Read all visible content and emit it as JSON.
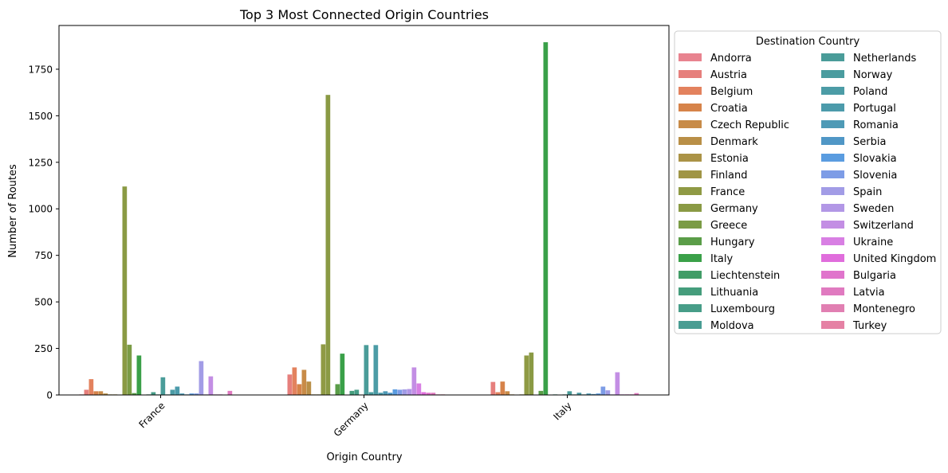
{
  "chart_data": {
    "type": "bar",
    "title": "Top 3 Most Connected Origin Countries",
    "xlabel": "Origin Country",
    "ylabel": "Number of Routes",
    "ylim": [
      0,
      2000
    ],
    "yticks": [
      0,
      250,
      500,
      750,
      1000,
      1250,
      1500,
      1750
    ],
    "categories": [
      "France",
      "Germany",
      "Italy"
    ],
    "legend": {
      "title": "Destination Country",
      "placement": "upper right, outside the axes",
      "columns": 2
    },
    "grid": false,
    "series": [
      {
        "name": "Andorra",
        "color": "#e8838f",
        "values": [
          3,
          0,
          0
        ]
      },
      {
        "name": "Austria",
        "color": "#e67f7c",
        "values": [
          28,
          110,
          70
        ]
      },
      {
        "name": "Belgium",
        "color": "#e3825e",
        "values": [
          85,
          148,
          15
        ]
      },
      {
        "name": "Croatia",
        "color": "#d6834a",
        "values": [
          20,
          58,
          72
        ]
      },
      {
        "name": "Czech Republic",
        "color": "#c88b48",
        "values": [
          20,
          135,
          20
        ]
      },
      {
        "name": "Denmark",
        "color": "#b98f47",
        "values": [
          8,
          72,
          3
        ]
      },
      {
        "name": "Estonia",
        "color": "#ab9346",
        "values": [
          3,
          3,
          0
        ]
      },
      {
        "name": "Finland",
        "color": "#a09545",
        "values": [
          3,
          3,
          3
        ]
      },
      {
        "name": "France",
        "color": "#8f9a44",
        "values": [
          0,
          272,
          212
        ]
      },
      {
        "name": "Germany",
        "color": "#8a9a44",
        "values": [
          1120,
          1612,
          228
        ]
      },
      {
        "name": "Greece",
        "color": "#7b9c45",
        "values": [
          270,
          0,
          0
        ]
      },
      {
        "name": "Hungary",
        "color": "#5a9d48",
        "values": [
          10,
          58,
          22
        ]
      },
      {
        "name": "Italy",
        "color": "#3aa049",
        "values": [
          212,
          222,
          1895
        ]
      },
      {
        "name": "Liechtenstein",
        "color": "#429d67",
        "values": [
          0,
          0,
          0
        ]
      },
      {
        "name": "Lithuania",
        "color": "#459d7c",
        "values": [
          3,
          22,
          3
        ]
      },
      {
        "name": "Luxembourg",
        "color": "#479d88",
        "values": [
          15,
          28,
          0
        ]
      },
      {
        "name": "Moldova",
        "color": "#499d93",
        "values": [
          3,
          0,
          3
        ]
      },
      {
        "name": "Netherlands",
        "color": "#4a9c99",
        "values": [
          95,
          268,
          20
        ]
      },
      {
        "name": "Norway",
        "color": "#4a9c9f",
        "values": [
          3,
          15,
          3
        ]
      },
      {
        "name": "Poland",
        "color": "#4c9ca6",
        "values": [
          28,
          268,
          12
        ]
      },
      {
        "name": "Portugal",
        "color": "#4c9bab",
        "values": [
          45,
          12,
          3
        ]
      },
      {
        "name": "Romania",
        "color": "#4e9ab6",
        "values": [
          8,
          20,
          8
        ]
      },
      {
        "name": "Serbia",
        "color": "#5097c6",
        "values": [
          3,
          12,
          5
        ]
      },
      {
        "name": "Slovakia",
        "color": "#5a9ce0",
        "values": [
          8,
          30,
          8
        ]
      },
      {
        "name": "Slovenia",
        "color": "#7d9ce6",
        "values": [
          8,
          28,
          45
        ]
      },
      {
        "name": "Spain",
        "color": "#a29ce6",
        "values": [
          182,
          30,
          25
        ]
      },
      {
        "name": "Sweden",
        "color": "#b297e6",
        "values": [
          3,
          32,
          3
        ]
      },
      {
        "name": "Switzerland",
        "color": "#c38ee4",
        "values": [
          100,
          148,
          122
        ]
      },
      {
        "name": "Ukraine",
        "color": "#d87fe3",
        "values": [
          3,
          62,
          3
        ]
      },
      {
        "name": "United Kingdom",
        "color": "#e06ddc",
        "values": [
          3,
          15,
          3
        ]
      },
      {
        "name": "Bulgaria",
        "color": "#e074cc",
        "values": [
          0,
          12,
          3
        ]
      },
      {
        "name": "Latvia",
        "color": "#e07ac0",
        "values": [
          22,
          12,
          10
        ]
      },
      {
        "name": "Montenegro",
        "color": "#e17fb2",
        "values": [
          0,
          3,
          0
        ]
      },
      {
        "name": "Turkey",
        "color": "#e581a4",
        "values": [
          0,
          3,
          0
        ]
      }
    ]
  }
}
